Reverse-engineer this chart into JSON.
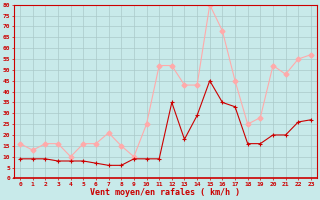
{
  "x": [
    0,
    1,
    2,
    3,
    4,
    5,
    6,
    7,
    8,
    9,
    10,
    11,
    12,
    13,
    14,
    15,
    16,
    17,
    18,
    19,
    20,
    21,
    22,
    23
  ],
  "wind_mean": [
    9,
    9,
    9,
    8,
    8,
    8,
    7,
    6,
    6,
    9,
    9,
    9,
    35,
    18,
    29,
    45,
    35,
    33,
    16,
    16,
    20,
    20,
    26,
    27
  ],
  "wind_gust": [
    16,
    13,
    16,
    16,
    10,
    16,
    16,
    21,
    15,
    10,
    25,
    52,
    52,
    43,
    43,
    80,
    68,
    45,
    25,
    28,
    52,
    48,
    55,
    57
  ],
  "bg_color": "#c8eaea",
  "grid_color": "#aacaca",
  "mean_color": "#cc0000",
  "gust_color": "#ffaaaa",
  "xlabel": "Vent moyen/en rafales ( km/h )",
  "xlabel_color": "#cc0000",
  "ylabel_values": [
    0,
    5,
    10,
    15,
    20,
    25,
    30,
    35,
    40,
    45,
    50,
    55,
    60,
    65,
    70,
    75,
    80
  ],
  "ylim": [
    0,
    80
  ],
  "xlim": [
    -0.5,
    23.5
  ],
  "tick_color": "#cc0000",
  "line_width": 0.8,
  "marker_size": 2.5
}
